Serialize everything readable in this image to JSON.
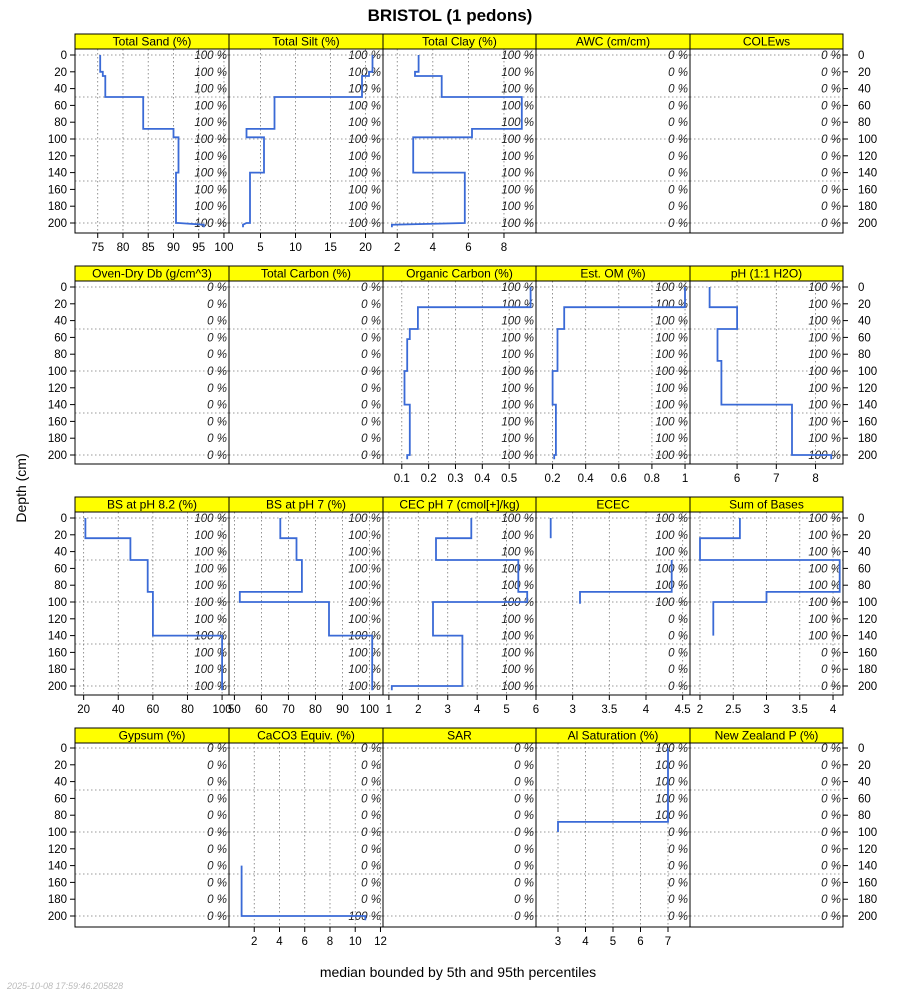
{
  "chart_data": {
    "type": "line",
    "title": "BRISTOL (1 pedons)",
    "ylabel": "Depth (cm)",
    "xlabel": "median bounded by 5th and 95th percentiles",
    "timestamp": "2025-10-08 17:59:46.205828",
    "grid": true,
    "strip_color": "#ffff00",
    "line_color": "#3a6ad6",
    "depth_range": [
      0,
      205
    ],
    "depth_ticks": [
      0,
      20,
      40,
      60,
      80,
      100,
      120,
      140,
      160,
      180,
      200
    ],
    "pct_depths": [
      0,
      20,
      40,
      60,
      80,
      100,
      120,
      140,
      160,
      180,
      200
    ],
    "panels": [
      {
        "label": "Total Sand (%)",
        "xlim": [
          70.5,
          101
        ],
        "ticks": [
          75,
          80,
          85,
          90,
          95,
          100
        ],
        "pct": [
          "100 %",
          "100 %",
          "100 %",
          "100 %",
          "100 %",
          "100 %",
          "100 %",
          "100 %",
          "100 %",
          "100 %",
          "100 %"
        ],
        "line": [
          [
            75.5,
            0
          ],
          [
            75.5,
            20
          ],
          [
            76,
            20
          ],
          [
            76,
            25
          ],
          [
            76.5,
            25
          ],
          [
            76.5,
            50
          ],
          [
            84,
            50
          ],
          [
            84,
            88
          ],
          [
            90,
            88
          ],
          [
            90,
            98
          ],
          [
            91,
            98
          ],
          [
            91,
            140
          ],
          [
            90.5,
            140
          ],
          [
            90.5,
            200
          ],
          [
            91,
            200
          ],
          [
            96,
            202
          ],
          [
            96,
            205
          ]
        ]
      },
      {
        "label": "Total Silt (%)",
        "xlim": [
          0.5,
          22.5
        ],
        "ticks": [
          5,
          10,
          15,
          20
        ],
        "pct": [
          "100 %",
          "100 %",
          "100 %",
          "100 %",
          "100 %",
          "100 %",
          "100 %",
          "100 %",
          "100 %",
          "100 %",
          "100 %"
        ],
        "line": [
          [
            21,
            0
          ],
          [
            21,
            20
          ],
          [
            20.5,
            20
          ],
          [
            20.5,
            25
          ],
          [
            19.5,
            25
          ],
          [
            19.5,
            50
          ],
          [
            7,
            50
          ],
          [
            7,
            88
          ],
          [
            3,
            88
          ],
          [
            3,
            98
          ],
          [
            5.5,
            98
          ],
          [
            5.5,
            140
          ],
          [
            3.5,
            140
          ],
          [
            3.5,
            200
          ],
          [
            3,
            200
          ],
          [
            2.5,
            202
          ],
          [
            2.5,
            205
          ]
        ]
      },
      {
        "label": "Total Clay (%)",
        "xlim": [
          1.2,
          9.8
        ],
        "ticks": [
          2,
          4,
          6,
          8
        ],
        "pct": [
          "100 %",
          "100 %",
          "100 %",
          "100 %",
          "100 %",
          "100 %",
          "100 %",
          "100 %",
          "100 %",
          "100 %",
          "100 %"
        ],
        "line": [
          [
            3.2,
            0
          ],
          [
            3.2,
            20
          ],
          [
            3,
            20
          ],
          [
            3,
            25
          ],
          [
            4.5,
            25
          ],
          [
            4.5,
            50
          ],
          [
            9,
            50
          ],
          [
            9,
            88
          ],
          [
            6.2,
            88
          ],
          [
            6.2,
            98
          ],
          [
            2.9,
            98
          ],
          [
            2.9,
            140
          ],
          [
            5.8,
            140
          ],
          [
            5.8,
            200
          ],
          [
            5.8,
            200
          ],
          [
            1.7,
            202
          ],
          [
            1.7,
            205
          ]
        ]
      },
      {
        "label": "AWC (cm/cm)",
        "xlim": [
          0,
          1
        ],
        "ticks": [],
        "pct": [
          "0 %",
          "0 %",
          "0 %",
          "0 %",
          "0 %",
          "0 %",
          "0 %",
          "0 %",
          "0 %",
          "0 %",
          "0 %"
        ],
        "line": []
      },
      {
        "label": "COLEws",
        "xlim": [
          0,
          1
        ],
        "ticks": [],
        "pct": [
          "0 %",
          "0 %",
          "0 %",
          "0 %",
          "0 %",
          "0 %",
          "0 %",
          "0 %",
          "0 %",
          "0 %",
          "0 %"
        ],
        "line": []
      },
      {
        "label": "Oven-Dry Db (g/cm^3)",
        "xlim": [
          0,
          1
        ],
        "ticks": [],
        "pct": [
          "0 %",
          "0 %",
          "0 %",
          "0 %",
          "0 %",
          "0 %",
          "0 %",
          "0 %",
          "0 %",
          "0 %",
          "0 %"
        ],
        "line": []
      },
      {
        "label": "Total Carbon (%)",
        "xlim": [
          0,
          1
        ],
        "ticks": [],
        "pct": [
          "0 %",
          "0 %",
          "0 %",
          "0 %",
          "0 %",
          "0 %",
          "0 %",
          "0 %",
          "0 %",
          "0 %",
          "0 %"
        ],
        "line": []
      },
      {
        "label": "Organic Carbon (%)",
        "xlim": [
          0.03,
          0.6
        ],
        "ticks": [
          0.1,
          0.2,
          0.3,
          0.4,
          0.5
        ],
        "pct": [
          "100 %",
          "100 %",
          "100 %",
          "100 %",
          "100 %",
          "100 %",
          "100 %",
          "100 %",
          "100 %",
          "100 %",
          "100 %"
        ],
        "line": [
          [
            0.58,
            0
          ],
          [
            0.58,
            24
          ],
          [
            0.16,
            24
          ],
          [
            0.16,
            50
          ],
          [
            0.13,
            50
          ],
          [
            0.13,
            62
          ],
          [
            0.12,
            62
          ],
          [
            0.12,
            100
          ],
          [
            0.11,
            100
          ],
          [
            0.11,
            140
          ],
          [
            0.13,
            140
          ],
          [
            0.13,
            200
          ],
          [
            0.12,
            200
          ],
          [
            0.12,
            205
          ]
        ]
      },
      {
        "label": "Est. OM (%)",
        "xlim": [
          0.1,
          1.03
        ],
        "ticks": [
          0.2,
          0.4,
          0.6,
          0.8,
          1.0
        ],
        "pct": [
          "100 %",
          "100 %",
          "100 %",
          "100 %",
          "100 %",
          "100 %",
          "100 %",
          "100 %",
          "100 %",
          "100 %",
          "100 %"
        ],
        "line": [
          [
            1.0,
            0
          ],
          [
            1.0,
            24
          ],
          [
            0.27,
            24
          ],
          [
            0.27,
            50
          ],
          [
            0.23,
            50
          ],
          [
            0.23,
            100
          ],
          [
            0.2,
            100
          ],
          [
            0.2,
            140
          ],
          [
            0.22,
            140
          ],
          [
            0.22,
            200
          ],
          [
            0.21,
            200
          ],
          [
            0.21,
            205
          ]
        ]
      },
      {
        "label": "pH (1:1 H2O)",
        "xlim": [
          4.8,
          8.7
        ],
        "ticks": [
          6,
          7,
          8
        ],
        "pct": [
          "100 %",
          "100 %",
          "100 %",
          "100 %",
          "100 %",
          "100 %",
          "100 %",
          "100 %",
          "100 %",
          "100 %",
          "100 %"
        ],
        "line": [
          [
            5.3,
            0
          ],
          [
            5.3,
            24
          ],
          [
            6.0,
            24
          ],
          [
            6.0,
            50
          ],
          [
            5.5,
            50
          ],
          [
            5.5,
            88
          ],
          [
            5.6,
            88
          ],
          [
            5.6,
            140
          ],
          [
            7.4,
            140
          ],
          [
            7.4,
            200
          ],
          [
            8.4,
            200
          ],
          [
            8.4,
            205
          ]
        ]
      },
      {
        "label": "BS at pH 8.2 (%)",
        "xlim": [
          15,
          104
        ],
        "ticks": [
          20,
          40,
          60,
          80,
          100
        ],
        "pct": [
          "100 %",
          "100 %",
          "100 %",
          "100 %",
          "100 %",
          "100 %",
          "100 %",
          "100 %",
          "100 %",
          "100 %",
          "100 %"
        ],
        "line": [
          [
            21,
            0
          ],
          [
            21,
            24
          ],
          [
            47,
            24
          ],
          [
            47,
            50
          ],
          [
            57,
            50
          ],
          [
            57,
            88
          ],
          [
            60,
            88
          ],
          [
            60,
            140
          ],
          [
            100,
            140
          ],
          [
            100,
            205
          ]
        ]
      },
      {
        "label": "BS at pH 7 (%)",
        "xlim": [
          48,
          105
        ],
        "ticks": [
          50,
          60,
          70,
          80,
          90,
          100
        ],
        "pct": [
          "100 %",
          "100 %",
          "100 %",
          "100 %",
          "100 %",
          "100 %",
          "100 %",
          "100 %",
          "100 %",
          "100 %",
          "100 %"
        ],
        "line": [
          [
            67,
            0
          ],
          [
            67,
            24
          ],
          [
            73,
            24
          ],
          [
            73,
            50
          ],
          [
            75,
            50
          ],
          [
            75,
            88
          ],
          [
            52,
            88
          ],
          [
            52,
            100
          ],
          [
            85,
            100
          ],
          [
            85,
            140
          ],
          [
            101,
            140
          ],
          [
            101,
            205
          ]
        ]
      },
      {
        "label": "CEC pH 7 (cmol[+]/kg)",
        "xlim": [
          0.8,
          6.0
        ],
        "ticks": [
          1,
          2,
          3,
          4,
          5,
          6
        ],
        "pct": [
          "100 %",
          "100 %",
          "100 %",
          "100 %",
          "100 %",
          "100 %",
          "100 %",
          "100 %",
          "100 %",
          "100 %",
          "100 %"
        ],
        "line": [
          [
            3.8,
            0
          ],
          [
            3.8,
            24
          ],
          [
            2.6,
            24
          ],
          [
            2.6,
            50
          ],
          [
            5.4,
            50
          ],
          [
            5.4,
            88
          ],
          [
            5.7,
            88
          ],
          [
            5.7,
            100
          ],
          [
            2.5,
            100
          ],
          [
            2.5,
            140
          ],
          [
            3.5,
            140
          ],
          [
            3.5,
            200
          ],
          [
            1.1,
            200
          ],
          [
            1.1,
            205
          ]
        ]
      },
      {
        "label": "ECEC",
        "xlim": [
          2.5,
          4.6
        ],
        "ticks": [
          3.0,
          3.5,
          4.0,
          4.5
        ],
        "pct": [
          "100 %",
          "100 %",
          "100 %",
          "100 %",
          "100 %",
          "100 %",
          "0 %",
          "0 %",
          "0 %",
          "0 %",
          "0 %"
        ],
        "line": [
          [
            2.7,
            0
          ],
          [
            2.7,
            24
          ]
        ],
        "line2": [
          [
            4.35,
            50
          ],
          [
            4.35,
            88
          ],
          [
            3.1,
            88
          ],
          [
            3.1,
            102
          ]
        ]
      },
      {
        "label": "Sum of Bases",
        "xlim": [
          1.85,
          4.15
        ],
        "ticks": [
          2.0,
          2.5,
          3.0,
          3.5,
          4.0
        ],
        "pct": [
          "100 %",
          "100 %",
          "100 %",
          "100 %",
          "100 %",
          "100 %",
          "100 %",
          "100 %",
          "0 %",
          "0 %",
          "0 %"
        ],
        "line": [
          [
            2.6,
            0
          ],
          [
            2.6,
            24
          ],
          [
            2.0,
            24
          ],
          [
            2.0,
            50
          ],
          [
            4.1,
            50
          ],
          [
            4.1,
            88
          ],
          [
            3.0,
            88
          ],
          [
            3.0,
            100
          ],
          [
            2.2,
            100
          ],
          [
            2.2,
            140
          ]
        ]
      },
      {
        "label": "Gypsum (%)",
        "xlim": [
          0,
          1
        ],
        "ticks": [],
        "pct": [
          "0 %",
          "0 %",
          "0 %",
          "0 %",
          "0 %",
          "0 %",
          "0 %",
          "0 %",
          "0 %",
          "0 %",
          "0 %"
        ],
        "line": []
      },
      {
        "label": "CaCO3 Equiv. (%)",
        "xlim": [
          0,
          12.2
        ],
        "ticks": [
          2,
          4,
          6,
          8,
          10,
          12
        ],
        "pct": [
          "0 %",
          "0 %",
          "0 %",
          "0 %",
          "0 %",
          "0 %",
          "0 %",
          "0 %",
          "0 %",
          "0 %",
          "100 %"
        ],
        "line": [
          [
            1,
            140
          ],
          [
            1,
            200
          ],
          [
            10.8,
            200
          ],
          [
            10.8,
            205
          ]
        ]
      },
      {
        "label": "SAR",
        "xlim": [
          0,
          1
        ],
        "ticks": [],
        "pct": [
          "0 %",
          "0 %",
          "0 %",
          "0 %",
          "0 %",
          "0 %",
          "0 %",
          "0 %",
          "0 %",
          "0 %",
          "0 %"
        ],
        "line": []
      },
      {
        "label": "Al Saturation (%)",
        "xlim": [
          2.2,
          7.8
        ],
        "ticks": [
          3,
          4,
          5,
          6,
          7
        ],
        "pct": [
          "100 %",
          "100 %",
          "100 %",
          "100 %",
          "100 %",
          "0 %",
          "0 %",
          "0 %",
          "0 %",
          "0 %",
          "0 %"
        ],
        "line": [
          [
            7,
            0
          ],
          [
            7,
            88
          ],
          [
            3,
            88
          ],
          [
            3,
            100
          ]
        ]
      },
      {
        "label": "New Zealand P (%)",
        "xlim": [
          0,
          1
        ],
        "ticks": [],
        "pct": [
          "0 %",
          "0 %",
          "0 %",
          "0 %",
          "0 %",
          "0 %",
          "0 %",
          "0 %",
          "0 %",
          "0 %",
          "0 %"
        ],
        "line": []
      }
    ]
  }
}
